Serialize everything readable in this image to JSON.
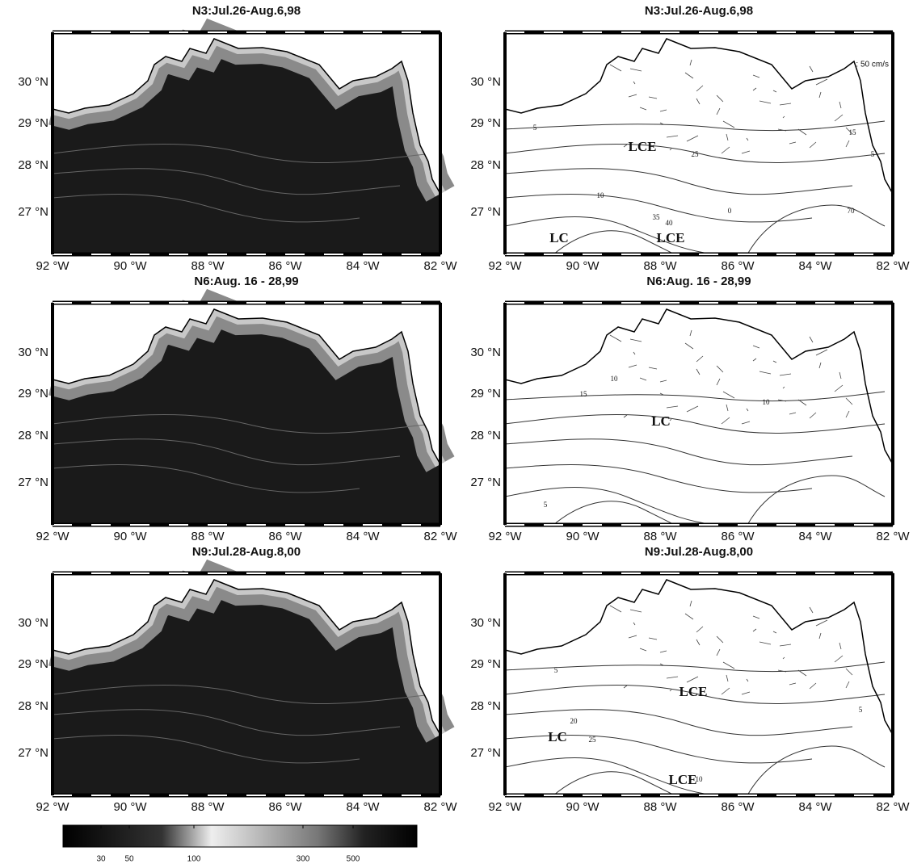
{
  "panels": [
    {
      "title": "N3:Jul.26-Aug.6,98",
      "labels": []
    },
    {
      "title": "N3:Jul.26-Aug.6,98",
      "labels": [
        ": 50 cm/s",
        "LCE",
        "LC",
        "LCE",
        "25",
        "10",
        "5",
        "35",
        "40",
        "0",
        "70",
        "15",
        "5"
      ]
    },
    {
      "title": "N6:Aug. 16 - 28,99",
      "labels": []
    },
    {
      "title": "N6:Aug. 16 - 28,99",
      "labels": [
        "LC",
        "10",
        "15",
        "10",
        "5"
      ]
    },
    {
      "title": "N9:Jul.28-Aug.8,00",
      "labels": []
    },
    {
      "title": "N9:Jul.28-Aug.8,00",
      "labels": [
        "LCE",
        "LC",
        "LCE",
        "5",
        "20",
        "25",
        "10",
        "5"
      ]
    }
  ],
  "x_tick_labels": [
    "92 °W",
    "90 °W",
    "88 °W",
    "86 °W",
    "84 °W",
    "82 °W"
  ],
  "y_tick_labels": [
    "30 °N",
    "29 °N",
    "28 °N",
    "27 °N"
  ],
  "colorbar": {
    "ticks": [
      30,
      50,
      100,
      300,
      500
    ]
  }
}
